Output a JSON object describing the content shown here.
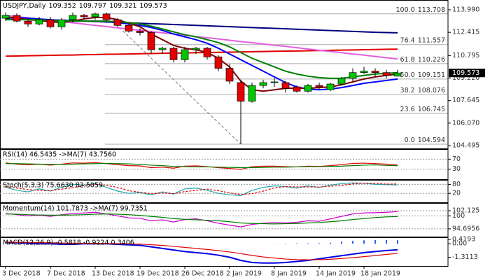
{
  "chart_data": [
    {
      "type": "candlestick",
      "title": "USDJPY,Daily",
      "categories": [
        "3 Dec 2018",
        null,
        null,
        null,
        "7 Dec 2018",
        null,
        null,
        null,
        "13 Dec 2018",
        null,
        null,
        null,
        "19 Dec 2018",
        null,
        null,
        null,
        "26 Dec 2018",
        null,
        null,
        null,
        "2 Jan 2019",
        null,
        null,
        null,
        "8 Jan 2019",
        null,
        null,
        null,
        "14 Jan 2019",
        null,
        null,
        null,
        "18 Jan 2019",
        null,
        null,
        null
      ],
      "open": [
        113.4,
        113.6,
        113.2,
        113.0,
        113.3,
        112.8,
        113.3,
        113.6,
        113.5,
        113.7,
        113.3,
        112.9,
        112.5,
        112.4,
        111.2,
        111.3,
        110.5,
        111.2,
        111.3,
        110.7,
        109.9,
        108.9,
        107.6,
        108.7,
        108.9,
        108.9,
        108.6,
        108.3,
        108.7,
        108.4,
        108.8,
        109.2,
        109.6,
        109.7,
        109.6,
        109.352
      ],
      "high": [
        113.8,
        113.75,
        113.4,
        113.5,
        113.5,
        113.4,
        113.8,
        113.7,
        113.8,
        113.8,
        113.4,
        113.0,
        112.7,
        112.5,
        111.4,
        111.4,
        111.4,
        111.4,
        111.4,
        110.8,
        110.2,
        109.1,
        108.9,
        109.1,
        109.2,
        109.0,
        108.7,
        108.8,
        108.9,
        108.9,
        109.3,
        109.9,
        110.0,
        109.9,
        109.8,
        109.797
      ],
      "low": [
        113.2,
        113.1,
        112.8,
        112.9,
        112.7,
        112.6,
        113.1,
        113.3,
        113.3,
        113.2,
        112.8,
        112.4,
        112.2,
        110.9,
        110.9,
        110.3,
        110.3,
        110.9,
        110.5,
        109.7,
        108.8,
        104.594,
        107.5,
        108.5,
        108.6,
        108.2,
        108.2,
        108.2,
        108.4,
        108.3,
        108.7,
        109.0,
        109.5,
        109.3,
        109.2,
        109.321
      ],
      "close": [
        113.6,
        113.2,
        113.0,
        113.3,
        112.8,
        113.3,
        113.6,
        113.5,
        113.7,
        113.3,
        112.9,
        112.5,
        112.4,
        111.2,
        111.3,
        110.5,
        111.2,
        111.3,
        110.7,
        109.9,
        109.0,
        107.6,
        108.7,
        108.9,
        108.95,
        108.5,
        108.3,
        108.7,
        108.6,
        108.8,
        109.2,
        109.6,
        109.7,
        109.6,
        109.4,
        109.573
      ],
      "up_color": "#00c800",
      "down_color": "#e40000",
      "series": [
        {
          "color": "#000080",
          "values": [
            113.35,
            113.33,
            113.31,
            113.29,
            113.27,
            113.25,
            113.23,
            113.2,
            113.17,
            113.14,
            113.11,
            113.08,
            113.05,
            113.02,
            112.99,
            112.96,
            112.93,
            112.9,
            112.87,
            112.84,
            112.81,
            112.78,
            112.75,
            112.72,
            112.69,
            112.66,
            112.63,
            112.6,
            112.57,
            112.54,
            112.51,
            112.48,
            112.45,
            112.42,
            112.4,
            112.38
          ]
        },
        {
          "color": "#e00000",
          "values": [
            110.75,
            110.76,
            110.78,
            110.79,
            110.81,
            110.82,
            110.83,
            110.85,
            110.86,
            110.88,
            110.89,
            110.9,
            110.92,
            110.93,
            110.95,
            110.96,
            110.97,
            110.99,
            111.0,
            111.02,
            111.03,
            111.04,
            111.06,
            111.07,
            111.09,
            111.1,
            111.11,
            111.13,
            111.14,
            111.16,
            111.17,
            111.18,
            111.2,
            111.21,
            111.23,
            111.24
          ]
        },
        {
          "color": "#e060e0",
          "values": [
            113.6,
            113.51,
            113.43,
            113.34,
            113.25,
            113.17,
            113.08,
            112.99,
            112.9,
            112.82,
            112.73,
            112.64,
            112.56,
            112.47,
            112.38,
            112.3,
            112.21,
            112.12,
            112.03,
            111.95,
            111.86,
            111.77,
            111.69,
            111.6,
            111.51,
            111.43,
            111.34,
            111.25,
            111.16,
            111.08,
            110.99,
            110.9,
            110.82,
            110.73,
            110.64,
            110.56
          ]
        },
        {
          "color": "#0000ff",
          "values": [
            113.45,
            113.45,
            113.4,
            113.35,
            113.3,
            113.25,
            113.2,
            113.2,
            113.2,
            113.15,
            113.1,
            113.0,
            112.9,
            112.75,
            112.55,
            112.3,
            112.1,
            111.9,
            111.65,
            111.3,
            110.9,
            110.5,
            110.1,
            109.7,
            109.3,
            108.9,
            108.6,
            108.45,
            108.4,
            108.45,
            108.55,
            108.7,
            108.85,
            108.95,
            109.05,
            109.15
          ]
        },
        {
          "color": "#800000",
          "values": [
            113.5,
            113.4,
            113.3,
            113.25,
            113.15,
            113.1,
            113.2,
            113.35,
            113.45,
            113.45,
            113.3,
            113.05,
            112.8,
            112.3,
            111.9,
            111.5,
            111.3,
            111.2,
            111.0,
            110.6,
            110.0,
            109.0,
            108.4,
            108.3,
            108.4,
            108.5,
            108.5,
            108.5,
            108.55,
            108.6,
            108.75,
            108.95,
            109.15,
            109.3,
            109.4,
            109.5
          ]
        },
        {
          "color": "#008000",
          "values": [
            113.3,
            113.3,
            113.3,
            113.3,
            113.25,
            113.2,
            113.2,
            113.2,
            113.2,
            113.2,
            113.15,
            113.1,
            113.0,
            112.85,
            112.65,
            112.45,
            112.25,
            112.1,
            111.9,
            111.7,
            111.4,
            111.0,
            110.6,
            110.3,
            110.0,
            109.7,
            109.5,
            109.35,
            109.25,
            109.2,
            109.2,
            109.3,
            109.4,
            109.5,
            109.55,
            109.6
          ]
        }
      ],
      "fibonacci": [
        {
          "ratio": "100.0",
          "value": 113.708
        },
        {
          "ratio": "76.4",
          "value": 111.557
        },
        {
          "ratio": "61.8",
          "value": 110.226
        },
        {
          "ratio": "50.0",
          "value": 109.151
        },
        {
          "ratio": "38.2",
          "value": 108.076
        },
        {
          "ratio": "23.6",
          "value": 106.745
        },
        {
          "ratio": "0.0",
          "value": 104.594
        }
      ],
      "ylim": [
        104.3,
        114.675
      ],
      "yticks": [
        {
          "value": 113.99,
          "label": "113.990"
        },
        112.415,
        110.795,
        {
          "value": 109.22,
          "label": "109.220"
        },
        107.645,
        {
          "value": 106.07,
          "label": "106.070"
        },
        104.495
      ],
      "grid": false
    },
    {
      "type": "line",
      "title": "RSI(14) 46.5435 ->MA(7) 43.7560",
      "ylim": [
        -10,
        110
      ],
      "yticks": [
        70,
        30
      ],
      "grid": true,
      "series": [
        {
          "color": "#e00000",
          "values": [
            55,
            50,
            47,
            50,
            46,
            50,
            55,
            54,
            56,
            52,
            48,
            44,
            43,
            36,
            38,
            34,
            42,
            43,
            40,
            36,
            33,
            29,
            40,
            42,
            42,
            40,
            39,
            42,
            41,
            44,
            48,
            53,
            54,
            52,
            50,
            46.5435
          ]
        },
        {
          "color": "#008000",
          "values": [
            52,
            52,
            51,
            50,
            49,
            49,
            50,
            51,
            52,
            53,
            52,
            51,
            49,
            46,
            44,
            41,
            40,
            39,
            39,
            38,
            37,
            36,
            36,
            37,
            38,
            38,
            39,
            40,
            40,
            41,
            42,
            44,
            46,
            47,
            45,
            43.756
          ]
        }
      ]
    },
    {
      "type": "line",
      "title": "Stoch(5,3,3) 75.6630 82.5059",
      "ylim": [
        -40,
        110
      ],
      "yticks": [
        80,
        20
      ],
      "grid": true,
      "series": [
        {
          "color": "#20a8b0",
          "values": [
            60,
            40,
            30,
            50,
            35,
            60,
            80,
            75,
            85,
            60,
            35,
            20,
            25,
            10,
            30,
            15,
            50,
            55,
            40,
            20,
            10,
            5,
            40,
            60,
            70,
            65,
            55,
            70,
            60,
            75,
            85,
            90,
            88,
            80,
            78,
            75.663
          ]
        },
        {
          "color": "#e00000",
          "dash": true,
          "values": [
            65,
            55,
            45,
            40,
            38,
            48,
            58,
            72,
            80,
            73,
            60,
            38,
            27,
            18,
            22,
            18,
            32,
            40,
            48,
            38,
            23,
            12,
            18,
            35,
            57,
            65,
            63,
            63,
            62,
            68,
            73,
            83,
            88,
            86,
            82,
            82.5059
          ]
        }
      ]
    },
    {
      "type": "line",
      "title": "Momentum(14) 101.7873 ->MA(7) 99.7351",
      "ylim": [
        91.5,
        105.3
      ],
      "yticks": [
        102.125,
        100,
        94.6956
      ],
      "grid": true,
      "series": [
        {
          "color": "#cc00cc",
          "values": [
            101,
            100.5,
            100,
            100.3,
            99.8,
            100.5,
            101,
            101.2,
            101.5,
            100.8,
            100,
            99.2,
            99,
            98,
            98.4,
            97.5,
            98.5,
            98.8,
            98,
            97,
            96.2,
            95.5,
            96.5,
            97,
            97.3,
            97.1,
            97.4,
            98,
            97.8,
            98.8,
            99.8,
            100.8,
            101.2,
            101.3,
            101.5,
            101.7873
          ]
        },
        {
          "color": "#008000",
          "values": [
            100.8,
            100.7,
            100.5,
            100.4,
            100.3,
            100.3,
            100.4,
            100.5,
            100.7,
            100.8,
            100.7,
            100.5,
            100.2,
            99.8,
            99.4,
            98.9,
            98.6,
            98.4,
            98.2,
            98.0,
            97.6,
            97.1,
            96.9,
            96.8,
            96.7,
            96.8,
            96.9,
            97.1,
            97.3,
            97.6,
            98.0,
            98.5,
            98.9,
            99.3,
            99.6,
            99.7351
          ]
        }
      ]
    },
    {
      "type": "line",
      "title": "MACD(12,26,9) -0.5818 -0.9224 0.3406",
      "ylim": [
        -2.14,
        0.62
      ],
      "yticks": [
        0.4193,
        {
          "value": 0,
          "label": "0.00"
        },
        -1.3113
      ],
      "grid": false,
      "series": [
        {
          "color": "#3060ff",
          "kind": "bar",
          "values": [
            null,
            null,
            null,
            null,
            null,
            null,
            null,
            null,
            null,
            null,
            null,
            null,
            null,
            null,
            null,
            null,
            null,
            null,
            null,
            null,
            null,
            null,
            null,
            null,
            0.02,
            0.03,
            0.04,
            0.05,
            0.06,
            0.1,
            0.2,
            0.28,
            0.33,
            0.36,
            0.36,
            0.3406
          ]
        },
        {
          "color": "#0000e0",
          "width": 2,
          "values": [
            0.1,
            0.1,
            0.05,
            0.0,
            0.0,
            -0.05,
            -0.05,
            0.0,
            0.0,
            0.0,
            -0.05,
            -0.1,
            -0.15,
            -0.3,
            -0.45,
            -0.6,
            -0.75,
            -0.85,
            -0.95,
            -1.1,
            -1.3,
            -1.6,
            -1.8,
            -1.85,
            -1.85,
            -1.8,
            -1.7,
            -1.6,
            -1.45,
            -1.3,
            -1.15,
            -1.0,
            -0.85,
            -0.75,
            -0.65,
            -0.5818
          ]
        },
        {
          "color": "#e00000",
          "values": [
            0.15,
            0.14,
            0.13,
            0.11,
            0.09,
            0.07,
            0.05,
            0.04,
            0.03,
            0.02,
            0.01,
            -0.01,
            -0.04,
            -0.09,
            -0.16,
            -0.25,
            -0.35,
            -0.45,
            -0.55,
            -0.66,
            -0.79,
            -0.95,
            -1.12,
            -1.27,
            -1.38,
            -1.47,
            -1.52,
            -1.54,
            -1.53,
            -1.49,
            -1.42,
            -1.34,
            -1.24,
            -1.14,
            -1.03,
            -0.9224
          ]
        }
      ]
    }
  ]
}
